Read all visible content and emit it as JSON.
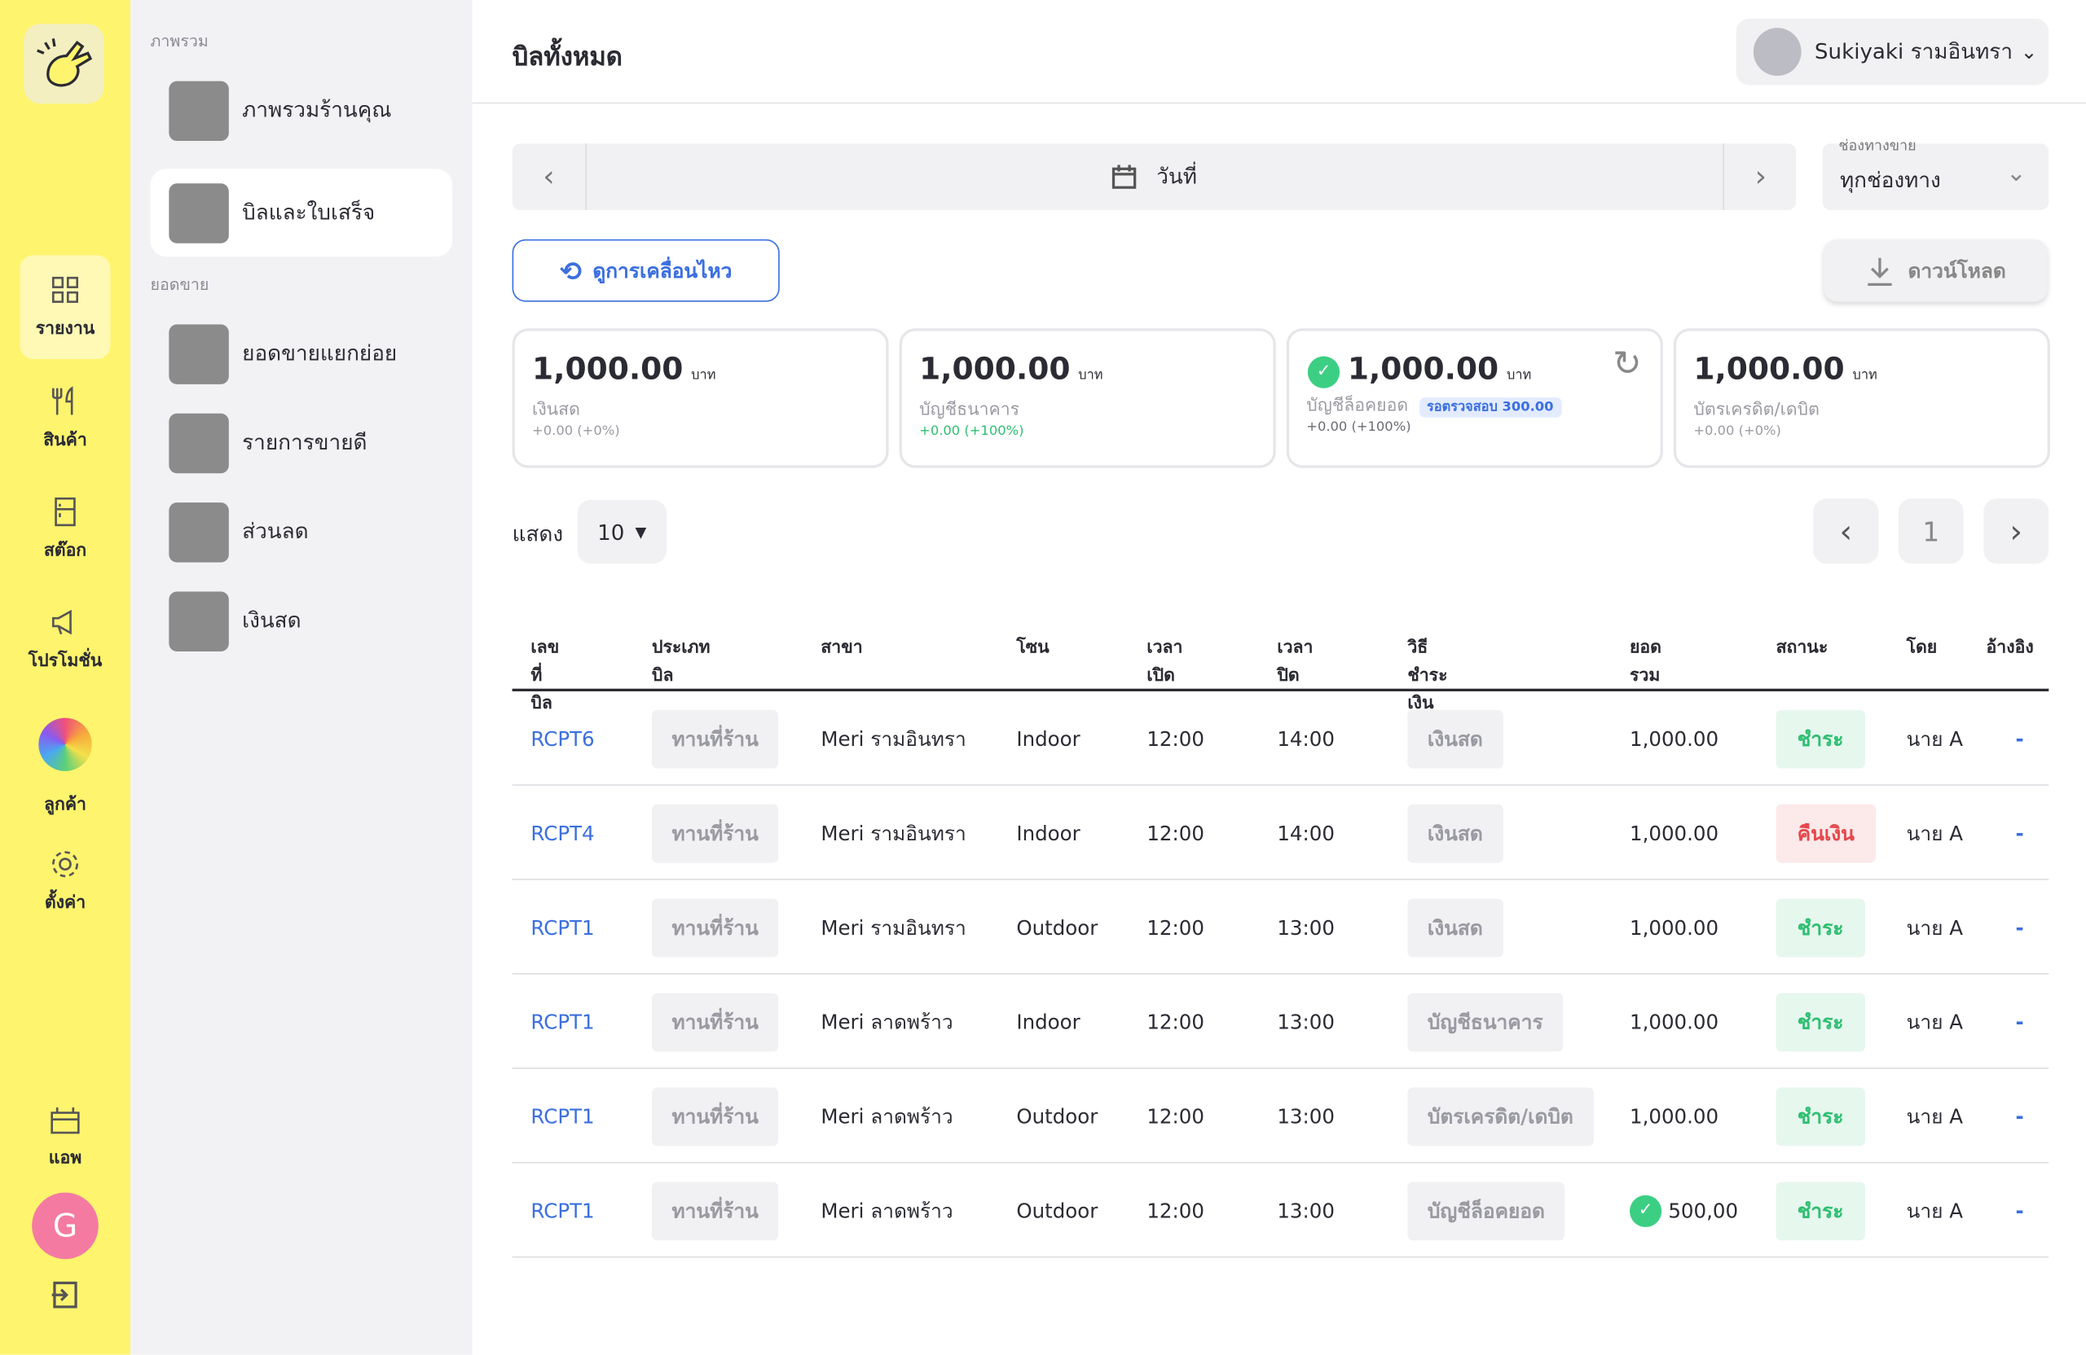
{
  "rail": {
    "items": [
      "รายงาน",
      "สินค้า",
      "สต๊อก",
      "โปรโมชั่น",
      "ลูกค้า",
      "ตั้งค่า",
      "แอพ"
    ],
    "avatar": "G"
  },
  "menu": {
    "sections": [
      {
        "title": "ภาพรวม",
        "items": [
          "ภาพรวมร้านคุณ",
          "บิลและใบเสร็จ"
        ]
      },
      {
        "title": "ยอดขาย",
        "items": [
          "ยอดขายแยกย่อย",
          "รายการขายดี",
          "ส่วนลด",
          "เงินสด"
        ]
      }
    ]
  },
  "header": {
    "title": "บิลทั้งหมด",
    "store": "Sukiyaki รามอินทรา"
  },
  "filters": {
    "date": "วันที่",
    "channel_label": "ช่องทางขาย",
    "channel": "ทุกช่องทาง",
    "history_button": "ดูการเคลื่อนไหว",
    "download_button": "ดาวน์โหลด"
  },
  "cards": [
    {
      "amount": "1,000.00",
      "unit": "บาท",
      "label": "เงินสด",
      "change": "+0.00 (+0%)",
      "change_color": "#9a9aa2"
    },
    {
      "amount": "1,000.00",
      "unit": "บาท",
      "label": "บัญชีธนาคาร",
      "change": "+0.00 (+100%)",
      "change_color": "#2fbf71"
    },
    {
      "amount": "1,000.00",
      "unit": "บาท",
      "label": "บัญชีล็อคยอด",
      "badge": "รอตรวจสอบ 300.00",
      "change": "+0.00 (+100%)",
      "change_color": "#6b6b74"
    },
    {
      "amount": "1,000.00",
      "unit": "บาท",
      "label": "บัตรเครดิต/เดบิต",
      "change": "+0.00 (+0%)",
      "change_color": "#9a9aa2"
    }
  ],
  "paging": {
    "show_label": "แสดง",
    "page_size": "10",
    "page": "1"
  },
  "table": {
    "columns": [
      "เลขที่บิล",
      "ประเภทบิล",
      "สาขา",
      "โซน",
      "เวลาเปิด",
      "เวลาปิด",
      "วิธีชำระเงิน",
      "ยอดรวม",
      "สถานะ",
      "โดย",
      "อ้างอิง"
    ],
    "rows": [
      [
        "RCPT6",
        "ทานที่ร้าน",
        "Meri รามอินทรา",
        "Indoor",
        "12:00",
        "14:00",
        "เงินสด",
        "1,000.00",
        "ชำระ",
        "นาย A",
        "-"
      ],
      [
        "RCPT4",
        "ทานที่ร้าน",
        "Meri รามอินทรา",
        "Indoor",
        "12:00",
        "14:00",
        "เงินสด",
        "1,000.00",
        "คืนเงิน",
        "นาย A",
        "-"
      ],
      [
        "RCPT1",
        "ทานที่ร้าน",
        "Meri รามอินทรา",
        "Outdoor",
        "12:00",
        "13:00",
        "เงินสด",
        "1,000.00",
        "ชำระ",
        "นาย A",
        "-"
      ],
      [
        "RCPT1",
        "ทานที่ร้าน",
        "Meri ลาดพร้าว",
        "Indoor",
        "12:00",
        "13:00",
        "บัญชีธนาคาร",
        "1,000.00",
        "ชำระ",
        "นาย A",
        "-"
      ],
      [
        "RCPT1",
        "ทานที่ร้าน",
        "Meri ลาดพร้าว",
        "Outdoor",
        "12:00",
        "13:00",
        "บัตรเครดิต/เดบิต",
        "1,000.00",
        "ชำระ",
        "นาย A",
        "-"
      ],
      [
        "RCPT1",
        "ทานที่ร้าน",
        "Meri ลาดพร้าว",
        "Outdoor",
        "12:00",
        "13:00",
        "บัญชีล็อคยอด",
        "500,00",
        "ชำระ",
        "นาย A",
        "-"
      ]
    ],
    "status_colors": [
      "#2fbf71",
      "#e5484d",
      "#2fbf71",
      "#2fbf71",
      "#2fbf71",
      "#2fbf71"
    ],
    "total_verified": [
      false,
      false,
      false,
      false,
      false,
      true
    ]
  }
}
